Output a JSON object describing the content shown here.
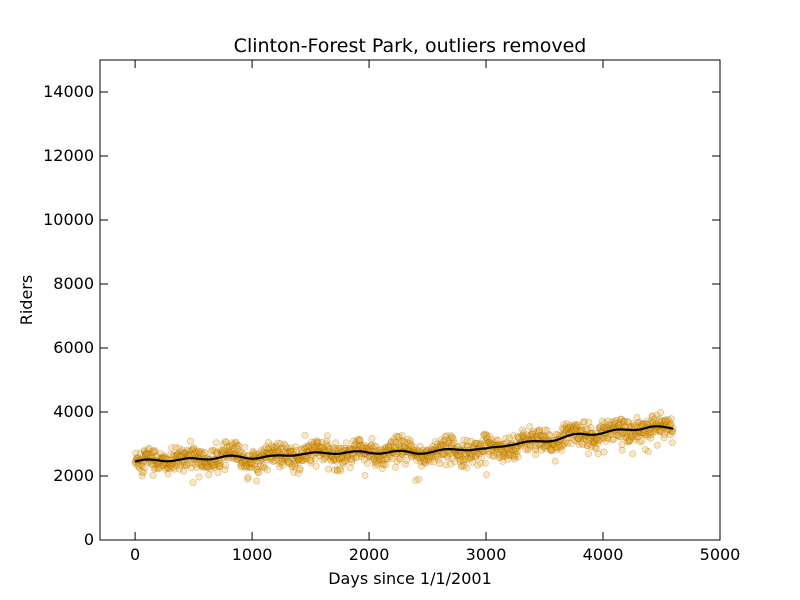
{
  "chart_data": {
    "type": "scatter",
    "title": "Clinton-Forest Park, outliers removed",
    "xlabel": "Days since 1/1/2001",
    "ylabel": "Riders",
    "xlim": [
      -300,
      5000
    ],
    "ylim": [
      0,
      15000
    ],
    "xticks": [
      0,
      1000,
      2000,
      3000,
      4000,
      5000
    ],
    "yticks": [
      0,
      2000,
      4000,
      6000,
      8000,
      10000,
      12000,
      14000
    ],
    "grid": false,
    "legend": "none",
    "colors": {
      "points_fill": "#f0a81a",
      "points_edge": "#8a5a00",
      "trend": "#000000"
    },
    "series": [
      {
        "kind": "scatter",
        "x_range": [
          0,
          4600
        ],
        "trend_points": [
          [
            0,
            2450
          ],
          [
            200,
            2500
          ],
          [
            400,
            2500
          ],
          [
            600,
            2550
          ],
          [
            800,
            2600
          ],
          [
            1000,
            2580
          ],
          [
            1200,
            2600
          ],
          [
            1400,
            2700
          ],
          [
            1600,
            2700
          ],
          [
            1800,
            2750
          ],
          [
            2000,
            2720
          ],
          [
            2200,
            2760
          ],
          [
            2400,
            2720
          ],
          [
            2600,
            2780
          ],
          [
            2800,
            2850
          ],
          [
            3000,
            2820
          ],
          [
            3200,
            3000
          ],
          [
            3400,
            3050
          ],
          [
            3600,
            3150
          ],
          [
            3800,
            3300
          ],
          [
            4000,
            3350
          ],
          [
            4200,
            3450
          ],
          [
            4400,
            3520
          ],
          [
            4600,
            3500
          ]
        ],
        "noise_sd": 180
      },
      {
        "kind": "line",
        "x_range": [
          0,
          4600
        ],
        "values_from": "trend_points"
      }
    ]
  }
}
